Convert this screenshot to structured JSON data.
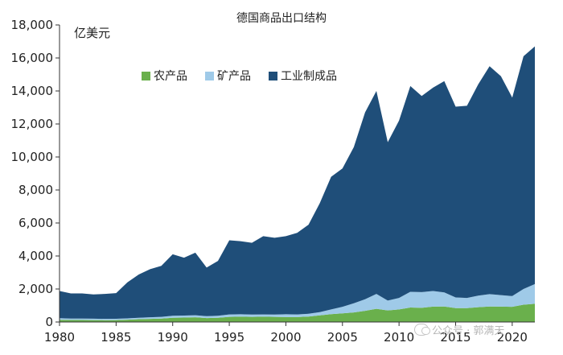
{
  "chart_data": {
    "type": "area",
    "stacked": true,
    "title": "德国商品出口结构",
    "ylabel": "亿美元",
    "xlabel": "",
    "xlim": [
      1980,
      2022
    ],
    "ylim": [
      0,
      18000
    ],
    "xticks": [
      1980,
      1985,
      1990,
      1995,
      2000,
      2005,
      2010,
      2015,
      2020
    ],
    "yticks": [
      0,
      2000,
      4000,
      6000,
      8000,
      10000,
      12000,
      14000,
      16000,
      18000
    ],
    "ytick_labels": [
      "0",
      "2,000",
      "4,000",
      "6,000",
      "8,000",
      "10,000",
      "12,000",
      "14,000",
      "16,000",
      "18,000"
    ],
    "grid": false,
    "legend_position": "top-left",
    "x": [
      1980,
      1981,
      1982,
      1983,
      1984,
      1985,
      1986,
      1987,
      1988,
      1989,
      1990,
      1991,
      1992,
      1993,
      1994,
      1995,
      1996,
      1997,
      1998,
      1999,
      2000,
      2001,
      2002,
      2003,
      2004,
      2005,
      2006,
      2007,
      2008,
      2009,
      2010,
      2011,
      2012,
      2013,
      2014,
      2015,
      2016,
      2017,
      2018,
      2019,
      2020,
      2021,
      2022
    ],
    "series": [
      {
        "name": "农产品",
        "color": "#6ab04c",
        "values": [
          130,
          120,
          120,
          115,
          110,
          115,
          140,
          170,
          190,
          210,
          260,
          270,
          290,
          240,
          260,
          310,
          320,
          310,
          320,
          310,
          300,
          300,
          330,
          400,
          480,
          520,
          580,
          680,
          800,
          700,
          760,
          880,
          860,
          930,
          940,
          840,
          840,
          900,
          940,
          930,
          920,
          1050,
          1100
        ]
      },
      {
        "name": "矿产品",
        "color": "#9fcae8",
        "values": [
          100,
          90,
          90,
          85,
          80,
          80,
          80,
          90,
          100,
          100,
          120,
          120,
          120,
          110,
          120,
          150,
          150,
          140,
          140,
          140,
          170,
          160,
          170,
          200,
          280,
          400,
          550,
          700,
          900,
          600,
          700,
          950,
          950,
          950,
          850,
          650,
          620,
          700,
          750,
          700,
          650,
          950,
          1200
        ]
      },
      {
        "name": "工业制成品",
        "color": "#1f4e79",
        "values": [
          1650,
          1520,
          1520,
          1470,
          1510,
          1555,
          2180,
          2620,
          2910,
          3090,
          3720,
          3510,
          3790,
          2950,
          3320,
          4490,
          4430,
          4350,
          4740,
          4650,
          4730,
          4940,
          5400,
          6600,
          8040,
          8380,
          9470,
          11320,
          12300,
          9600,
          10740,
          12470,
          11890,
          12320,
          12810,
          11560,
          11640,
          12800,
          13810,
          13270,
          12030,
          14100,
          14400
        ]
      }
    ]
  },
  "watermark": {
    "text": "公众号 · 郭满天",
    "icon": "wechat-icon"
  }
}
